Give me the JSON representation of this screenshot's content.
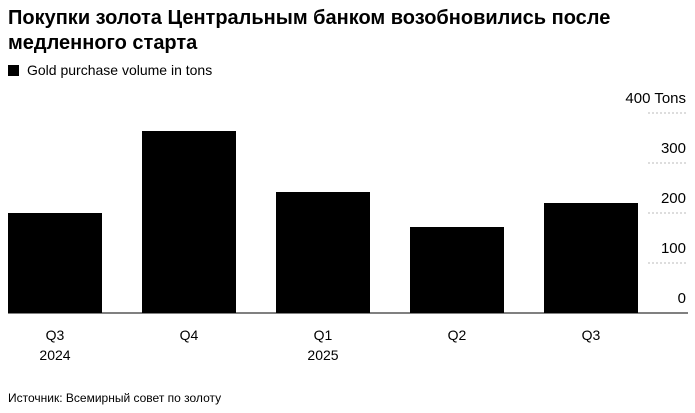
{
  "chart_data": {
    "type": "bar",
    "title": "Покупки золота Центральным банком возобновились после медленного старта",
    "categories": [
      [
        "Q3",
        "2024"
      ],
      [
        "Q4"
      ],
      [
        "Q1",
        "2025"
      ],
      [
        "Q2"
      ],
      [
        "Q3"
      ]
    ],
    "series": [
      {
        "name": "Gold purchase volume in tons",
        "color": "#000000",
        "values": [
          200,
          364,
          242,
          172,
          220
        ]
      }
    ],
    "ylim": [
      0,
      400
    ],
    "yticks": [
      0,
      100,
      200,
      300,
      {
        "value": 400,
        "label": "400 Tons"
      }
    ],
    "grid": true,
    "source": "Источник: Всемирный совет по золоту"
  }
}
